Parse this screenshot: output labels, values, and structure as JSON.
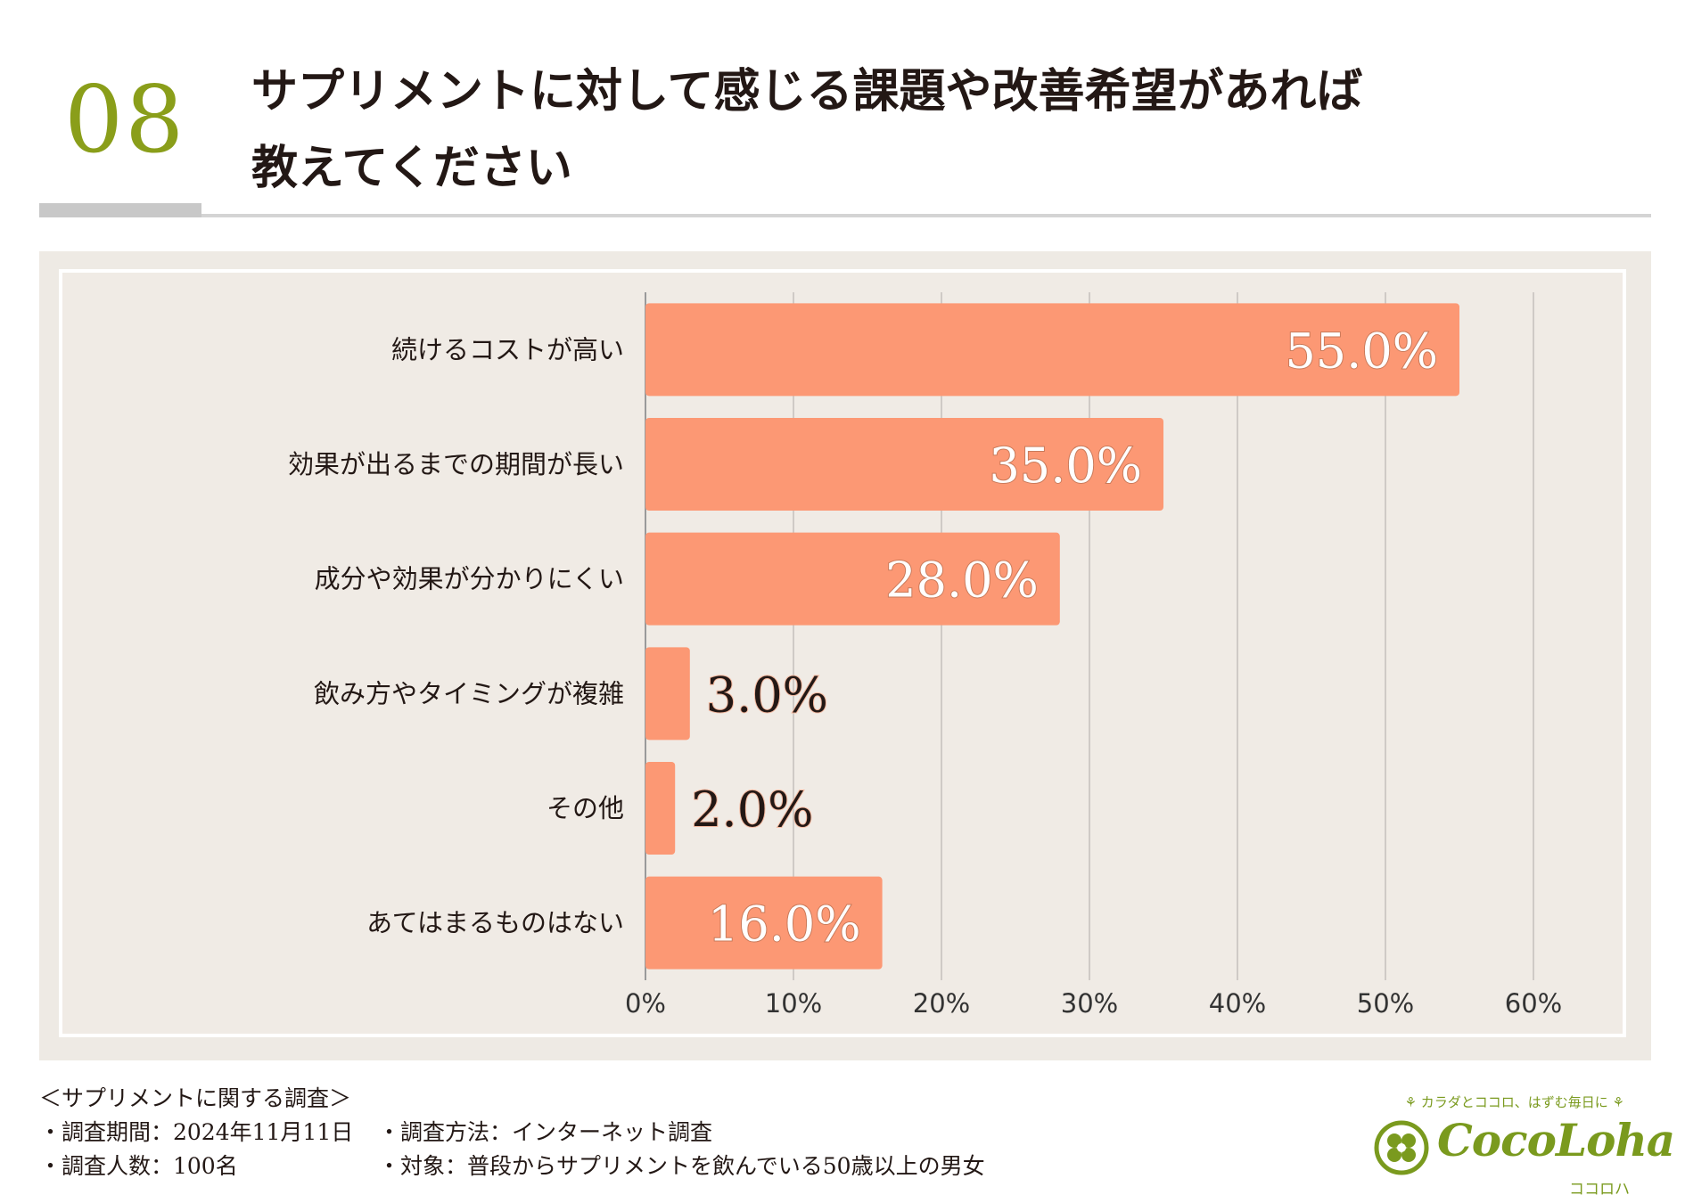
{
  "header": {
    "number": "08",
    "title_line1": "サプリメントに対して感じる課題や改善希望があれば",
    "title_line2": "教えてください"
  },
  "colors": {
    "bar": "#fc9874",
    "number": "#8a9e1a",
    "brand": "#7a9a1e",
    "panel": "#eeeae4"
  },
  "chart_data": {
    "type": "bar",
    "orientation": "horizontal",
    "categories": [
      "続けるコストが高い",
      "効果が出るまでの期間が長い",
      "成分や効果が分かりにくい",
      "飲み方やタイミングが複雑",
      "その他",
      "あてはまるものはない"
    ],
    "values": [
      55.0,
      35.0,
      28.0,
      3.0,
      2.0,
      16.0
    ],
    "value_labels": [
      "55.0%",
      "35.0%",
      "28.0%",
      "3.0%",
      "2.0%",
      "16.0%"
    ],
    "xlim": [
      0,
      60
    ],
    "x_ticks": [
      "0%",
      "10%",
      "20%",
      "30%",
      "40%",
      "50%",
      "60%"
    ],
    "grid": "vertical",
    "legend": "none"
  },
  "survey": {
    "title": "＜サプリメントに関する調査＞",
    "period": "・調査期間：2024年11月11日",
    "method": "・調査方法：インターネット調査",
    "count": "・調査人数：100名",
    "target": "・対象：普段からサプリメントを飲んでいる50歳以上の男女"
  },
  "brand": {
    "tagline": "⚘ カラダとココロ、はずむ毎日に ⚘",
    "name": "CocoLoha",
    "kana": "ココロハ",
    "icon": "clover-logo-icon"
  }
}
